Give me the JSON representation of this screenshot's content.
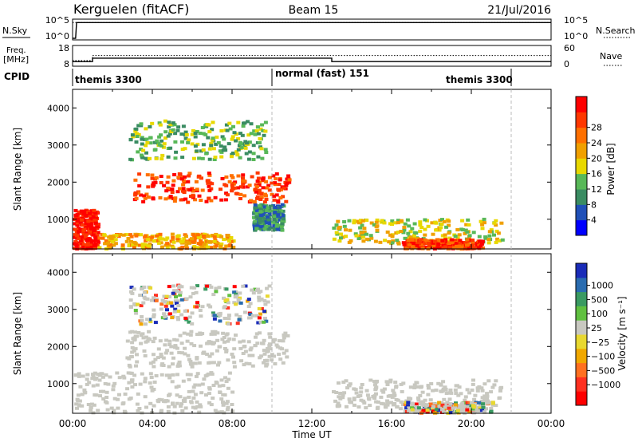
{
  "header": {
    "station": "Kerguelen (fitACF)",
    "beam": "Beam 15",
    "date": "21/Jul/2016"
  },
  "nsky": {
    "left_label": "N.Sky",
    "left_ticks": [
      "10^5",
      "10^0"
    ],
    "right_ticks": [
      "10^5",
      "10^0"
    ],
    "right_label": "N.Search"
  },
  "freq": {
    "left_label_1": "Freq.",
    "left_label_2": "[MHz]",
    "left_ticks": [
      "18",
      "8"
    ],
    "right_ticks": [
      "60",
      "0"
    ],
    "right_label": "Nave"
  },
  "cpid": {
    "label": "CPID",
    "segments": [
      "themis 3300",
      "normal (fast) 151",
      "themis 3300"
    ]
  },
  "xaxis": {
    "ticks": [
      "00:00",
      "04:00",
      "08:00",
      "12:00",
      "16:00",
      "20:00",
      "00:00"
    ],
    "label": "Time UT"
  },
  "colors": {
    "power": [
      "#0000ff",
      "#2050b8",
      "#3a8c62",
      "#58b858",
      "#e8d800",
      "#f0a000",
      "#ff7000",
      "#ff3800",
      "#ff0000"
    ],
    "velocity": [
      "#1a2cb8",
      "#2a6cb0",
      "#3a9a62",
      "#60c040",
      "#c8c8c0",
      "#e8d830",
      "#f0a800",
      "#ff7020",
      "#ff3020",
      "#ff0000"
    ],
    "ground_scatter": "#c8c8c0"
  },
  "chart_data": [
    {
      "type": "line",
      "name": "nsky-nsearch",
      "xlabel": "",
      "ylabel": "",
      "x_range_hours": [
        0,
        24
      ],
      "y_scale": "log",
      "ylim": [
        1,
        100000
      ],
      "series": [
        {
          "name": "N.Sky",
          "style": "solid",
          "x": [
            0,
            0.15,
            0.2,
            24
          ],
          "values": [
            1,
            1,
            30000,
            30000
          ]
        },
        {
          "name": "N.Search",
          "style": "dotted",
          "x": [
            0,
            24
          ],
          "values": [
            30000,
            30000
          ]
        }
      ]
    },
    {
      "type": "line",
      "name": "freq-nave",
      "xlabel": "",
      "ylabel": "",
      "x_range_hours": [
        0,
        24
      ],
      "ylim_freq_mhz": [
        8,
        18
      ],
      "ylim_nave": [
        0,
        60
      ],
      "series": [
        {
          "name": "Freq.",
          "style": "solid",
          "x": [
            0,
            1,
            1,
            13,
            13,
            24
          ],
          "values": [
            10,
            10,
            11.8,
            11.8,
            10,
            10
          ]
        },
        {
          "name": "Nave",
          "style": "dotted",
          "x": [
            0,
            1,
            1,
            24
          ],
          "values": [
            15,
            15,
            31,
            31
          ]
        }
      ]
    },
    {
      "type": "heatmap",
      "name": "power",
      "xlabel": "Time UT",
      "ylabel": "Slant Range [km]",
      "y_ticks": [
        1000,
        2000,
        3000,
        4000
      ],
      "ylim": [
        200,
        4500
      ],
      "x_ticks": [
        "00:00",
        "04:00",
        "08:00",
        "12:00",
        "16:00",
        "20:00",
        "00:00"
      ],
      "colorbar_label": "Power [dB]",
      "colorbar_ticks": [
        "4",
        "8",
        "12",
        "16",
        "20",
        "24",
        "28"
      ],
      "vertical_markers_hours": [
        10,
        22
      ],
      "regions": [
        {
          "t": [
            3,
            10.8
          ],
          "r": [
            1450,
            2250
          ],
          "level": 7
        },
        {
          "t": [
            2.8,
            9.8
          ],
          "r": [
            2600,
            3650
          ],
          "level": 3
        },
        {
          "t": [
            0,
            1.2
          ],
          "r": [
            200,
            1250
          ],
          "level": 8
        },
        {
          "t": [
            1.2,
            8
          ],
          "r": [
            200,
            600
          ],
          "level": 5
        },
        {
          "t": [
            13,
            21.5
          ],
          "r": [
            300,
            1000
          ],
          "level": 4
        },
        {
          "t": [
            16.5,
            20.5
          ],
          "r": [
            200,
            450
          ],
          "level": 7
        },
        {
          "t": [
            9,
            10.5
          ],
          "r": [
            700,
            1400
          ],
          "level": 2
        }
      ]
    },
    {
      "type": "heatmap",
      "name": "velocity",
      "xlabel": "Time UT",
      "ylabel": "Slant Range [km]",
      "y_ticks": [
        1000,
        2000,
        3000,
        4000
      ],
      "ylim": [
        200,
        4500
      ],
      "x_ticks": [
        "00:00",
        "04:00",
        "08:00",
        "12:00",
        "16:00",
        "20:00",
        "00:00"
      ],
      "colorbar_label": "Velocity [m s⁻¹]",
      "colorbar_ticks": [
        "1000",
        "500",
        "100",
        "25",
        "−25",
        "−100",
        "−500",
        "−1000"
      ],
      "vertical_markers_hours": [
        10,
        22
      ],
      "regions": [
        {
          "t": [
            2.6,
            10.8
          ],
          "r": [
            1450,
            2400
          ],
          "level": "gs"
        },
        {
          "t": [
            2.8,
            9.8
          ],
          "r": [
            2600,
            3650
          ],
          "level": "mixed"
        },
        {
          "t": [
            0,
            8
          ],
          "r": [
            200,
            1300
          ],
          "level": "gs"
        },
        {
          "t": [
            13,
            21.5
          ],
          "r": [
            300,
            1100
          ],
          "level": "gs"
        },
        {
          "t": [
            16.5,
            21
          ],
          "r": [
            200,
            500
          ],
          "level": "mixed"
        }
      ]
    }
  ]
}
